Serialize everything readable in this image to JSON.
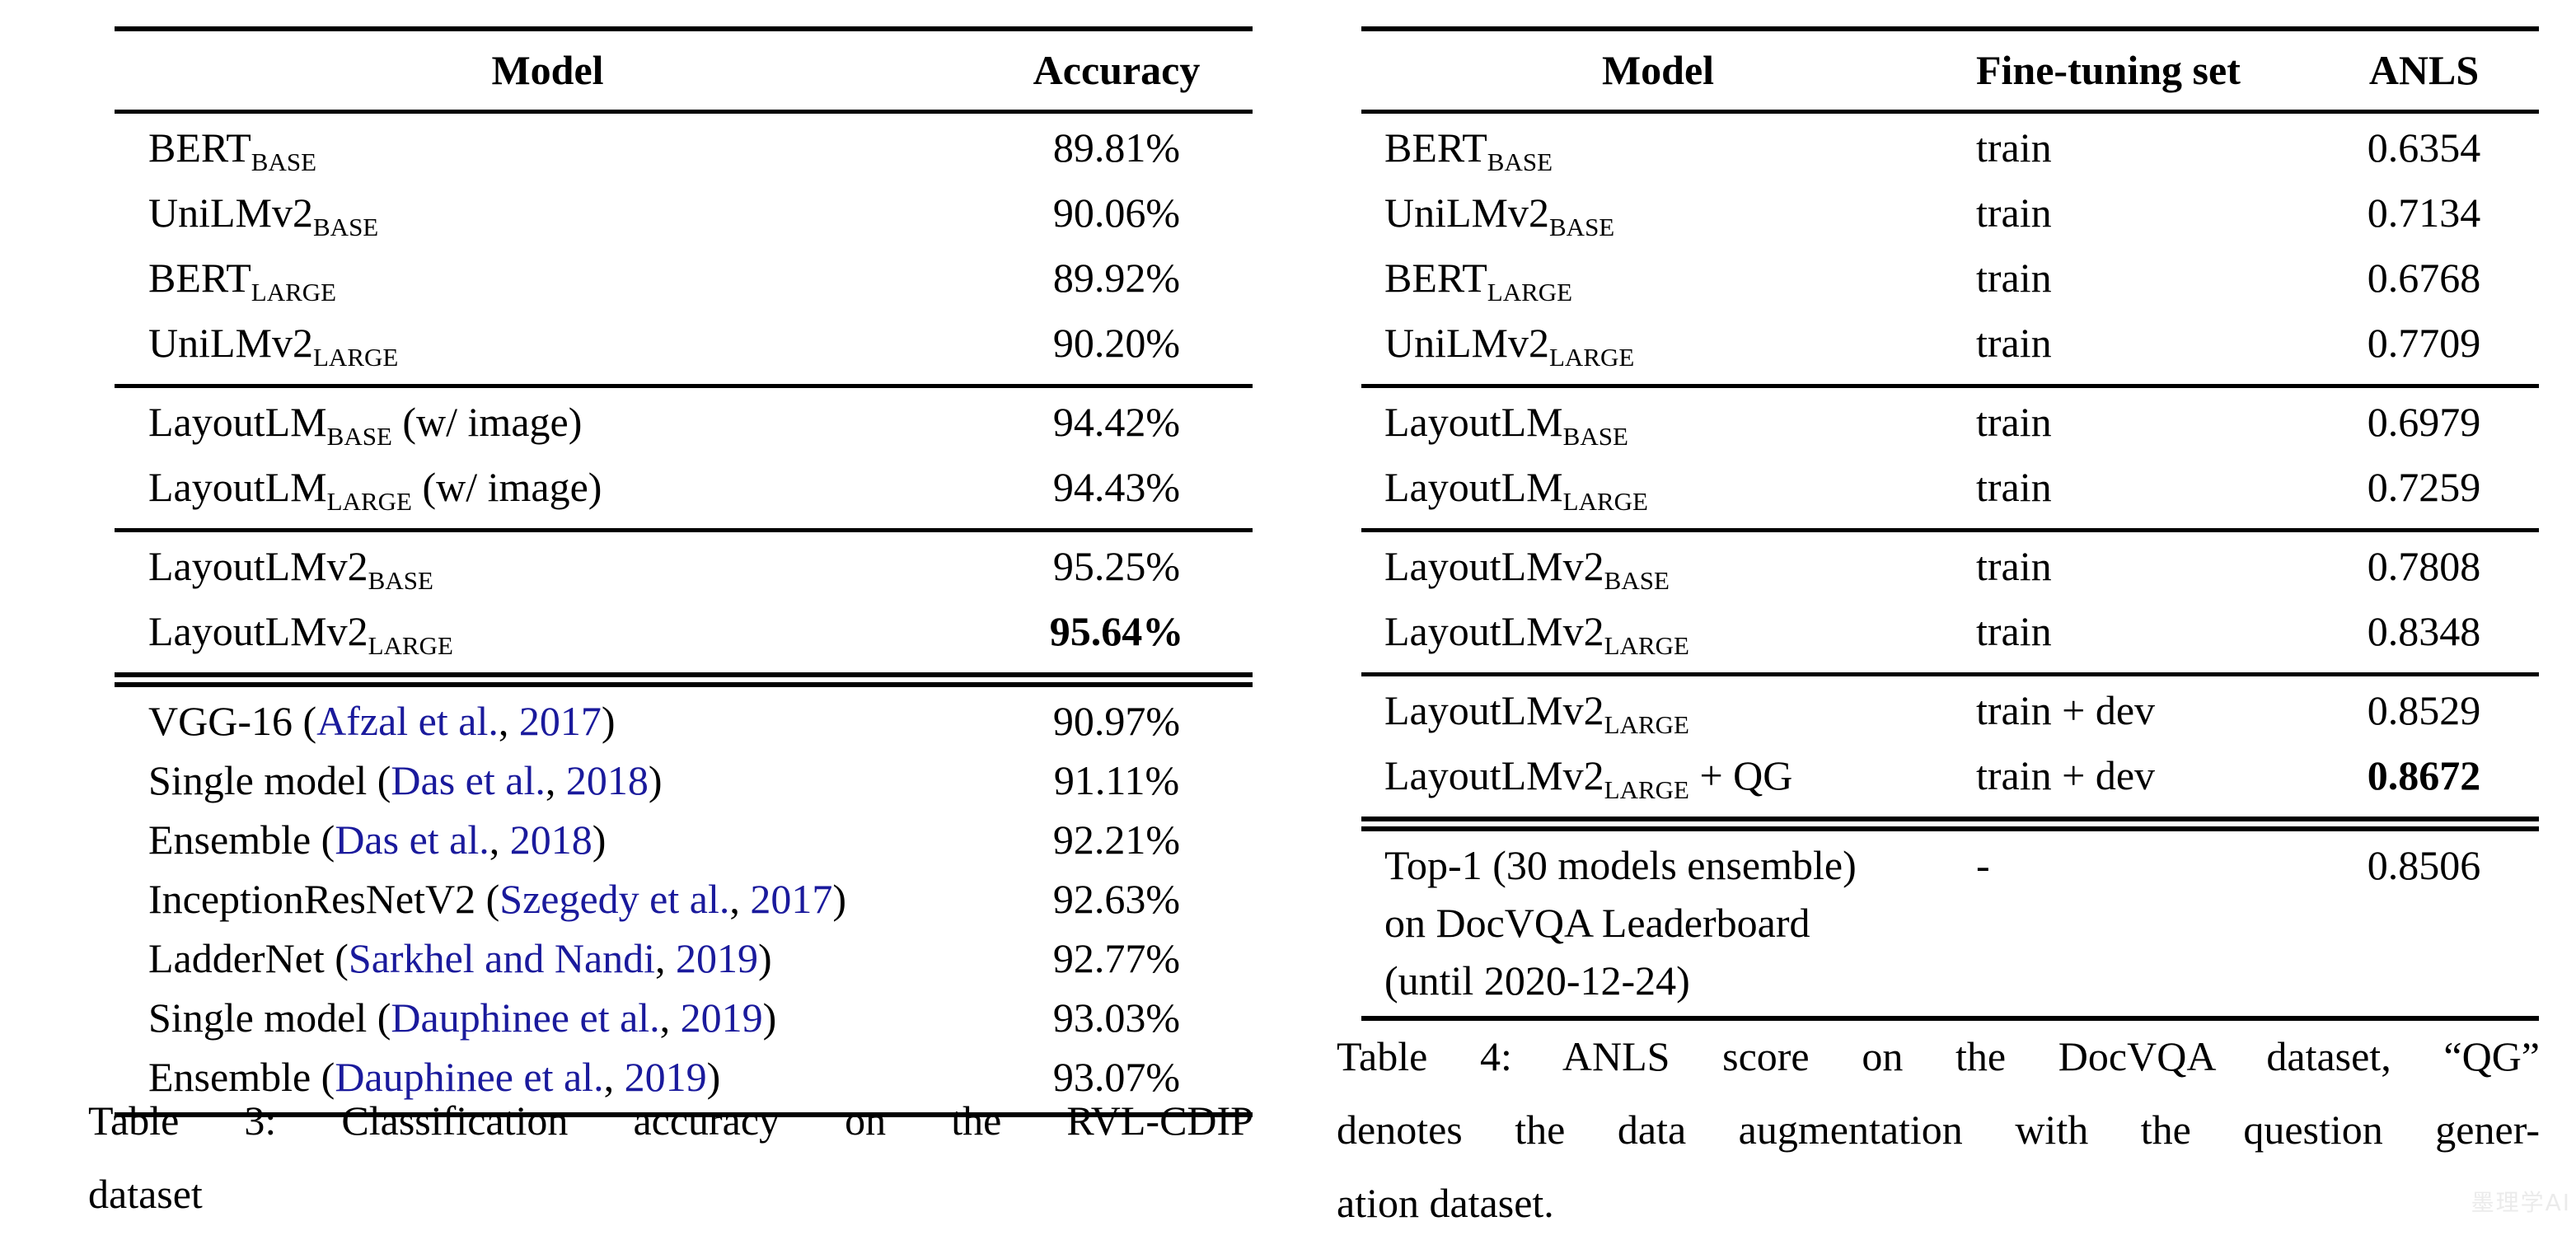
{
  "page": {
    "background": "#ffffff",
    "text_color": "#000000",
    "citation_color": "#1a1a9c",
    "watermark": {
      "text": "墨理学AI",
      "color": "#ebebeb"
    }
  },
  "table3": {
    "columns": [
      "Model",
      "Accuracy"
    ],
    "groups": [
      {
        "rows": [
          {
            "model": [
              {
                "t": "BERT"
              },
              {
                "t": "BASE",
                "s": "sub"
              }
            ],
            "accuracy": "89.81%"
          },
          {
            "model": [
              {
                "t": "UniLMv2"
              },
              {
                "t": "BASE",
                "s": "sub"
              }
            ],
            "accuracy": "90.06%"
          },
          {
            "model": [
              {
                "t": "BERT"
              },
              {
                "t": "LARGE",
                "s": "sub"
              }
            ],
            "accuracy": "89.92%"
          },
          {
            "model": [
              {
                "t": "UniLMv2"
              },
              {
                "t": "LARGE",
                "s": "sub"
              }
            ],
            "accuracy": "90.20%"
          }
        ]
      },
      {
        "rows": [
          {
            "model": [
              {
                "t": "LayoutLM"
              },
              {
                "t": "BASE",
                "s": "sub"
              },
              {
                "t": " (w/ image)"
              }
            ],
            "accuracy": "94.42%"
          },
          {
            "model": [
              {
                "t": "LayoutLM"
              },
              {
                "t": "LARGE",
                "s": "sub"
              },
              {
                "t": " (w/ image)"
              }
            ],
            "accuracy": "94.43%"
          }
        ]
      },
      {
        "rows": [
          {
            "model": [
              {
                "t": "LayoutLMv2"
              },
              {
                "t": "BASE",
                "s": "sub"
              }
            ],
            "accuracy": "95.25%"
          },
          {
            "model": [
              {
                "t": "LayoutLMv2"
              },
              {
                "t": "LARGE",
                "s": "sub"
              }
            ],
            "accuracy": "95.64%",
            "accuracy_bold": true
          }
        ]
      },
      {
        "double_rule_above": true,
        "rows": [
          {
            "model": [
              {
                "t": "VGG-16 ("
              },
              {
                "t": "Afzal et al.",
                "s": "link"
              },
              {
                "t": ", "
              },
              {
                "t": "2017",
                "s": "link"
              },
              {
                "t": ")"
              }
            ],
            "accuracy": "90.97%"
          },
          {
            "model": [
              {
                "t": "Single model ("
              },
              {
                "t": "Das et al.",
                "s": "link"
              },
              {
                "t": ", "
              },
              {
                "t": "2018",
                "s": "link"
              },
              {
                "t": ")"
              }
            ],
            "accuracy": "91.11%"
          },
          {
            "model": [
              {
                "t": "Ensemble ("
              },
              {
                "t": "Das et al.",
                "s": "link"
              },
              {
                "t": ", "
              },
              {
                "t": "2018",
                "s": "link"
              },
              {
                "t": ")"
              }
            ],
            "accuracy": "92.21%"
          },
          {
            "model": [
              {
                "t": "InceptionResNetV2 ("
              },
              {
                "t": "Szegedy et al.",
                "s": "link"
              },
              {
                "t": ", "
              },
              {
                "t": "2017",
                "s": "link"
              },
              {
                "t": ")"
              }
            ],
            "accuracy": "92.63%"
          },
          {
            "model": [
              {
                "t": "LadderNet ("
              },
              {
                "t": "Sarkhel and Nandi",
                "s": "link"
              },
              {
                "t": ", "
              },
              {
                "t": "2019",
                "s": "link"
              },
              {
                "t": ")"
              }
            ],
            "accuracy": "92.77%"
          },
          {
            "model": [
              {
                "t": "Single model ("
              },
              {
                "t": "Dauphinee et al.",
                "s": "link"
              },
              {
                "t": ", "
              },
              {
                "t": "2019",
                "s": "link"
              },
              {
                "t": ")"
              }
            ],
            "accuracy": "93.03%"
          },
          {
            "model": [
              {
                "t": "Ensemble ("
              },
              {
                "t": "Dauphinee et al.",
                "s": "link"
              },
              {
                "t": ", "
              },
              {
                "t": "2019",
                "s": "link"
              },
              {
                "t": ")"
              }
            ],
            "accuracy": "93.07%"
          }
        ]
      }
    ],
    "caption_lines": [
      "Table 3: Classification accuracy on the RVL-CDIP",
      "dataset"
    ],
    "caption_full": "Table 3: Classification accuracy on the RVL-CDIP dataset"
  },
  "table4": {
    "columns": [
      "Model",
      "Fine-tuning set",
      "ANLS"
    ],
    "groups": [
      {
        "rows": [
          {
            "model": [
              {
                "t": "BERT"
              },
              {
                "t": "BASE",
                "s": "sub"
              }
            ],
            "ft": "train",
            "anls": "0.6354"
          },
          {
            "model": [
              {
                "t": "UniLMv2"
              },
              {
                "t": "BASE",
                "s": "sub"
              }
            ],
            "ft": "train",
            "anls": "0.7134"
          },
          {
            "model": [
              {
                "t": "BERT"
              },
              {
                "t": "LARGE",
                "s": "sub"
              }
            ],
            "ft": "train",
            "anls": "0.6768"
          },
          {
            "model": [
              {
                "t": "UniLMv2"
              },
              {
                "t": "LARGE",
                "s": "sub"
              }
            ],
            "ft": "train",
            "anls": "0.7709"
          }
        ]
      },
      {
        "rows": [
          {
            "model": [
              {
                "t": "LayoutLM"
              },
              {
                "t": "BASE",
                "s": "sub"
              }
            ],
            "ft": "train",
            "anls": "0.6979"
          },
          {
            "model": [
              {
                "t": "LayoutLM"
              },
              {
                "t": "LARGE",
                "s": "sub"
              }
            ],
            "ft": "train",
            "anls": "0.7259"
          }
        ]
      },
      {
        "rows": [
          {
            "model": [
              {
                "t": "LayoutLMv2"
              },
              {
                "t": "BASE",
                "s": "sub"
              }
            ],
            "ft": "train",
            "anls": "0.7808"
          },
          {
            "model": [
              {
                "t": "LayoutLMv2"
              },
              {
                "t": "LARGE",
                "s": "sub"
              }
            ],
            "ft": "train",
            "anls": "0.8348"
          }
        ]
      },
      {
        "rows": [
          {
            "model": [
              {
                "t": "LayoutLMv2"
              },
              {
                "t": "LARGE",
                "s": "sub"
              }
            ],
            "ft": "train + dev",
            "anls": "0.8529"
          },
          {
            "model": [
              {
                "t": "LayoutLMv2"
              },
              {
                "t": "LARGE",
                "s": "sub"
              },
              {
                "t": " + QG"
              }
            ],
            "ft": "train + dev",
            "anls": "0.8672",
            "anls_bold": true
          }
        ]
      },
      {
        "double_rule_above": true,
        "rows": [
          {
            "model": [
              {
                "t": "Top-1 (30 models ensemble)"
              },
              {
                "s": "br"
              },
              {
                "t": "on DocVQA Leaderboard"
              },
              {
                "s": "br"
              },
              {
                "t": "(until 2020-12-24)"
              }
            ],
            "ft": "-",
            "anls": "0.8506"
          }
        ]
      }
    ],
    "caption_lines": [
      "Table 4: ANLS score on the DocVQA dataset, “QG”",
      "denotes the data augmentation with the question gener-",
      "ation dataset."
    ],
    "caption_full": "Table 4: ANLS score on the DocVQA dataset, “QG” denotes the data augmentation with the question generation dataset."
  }
}
